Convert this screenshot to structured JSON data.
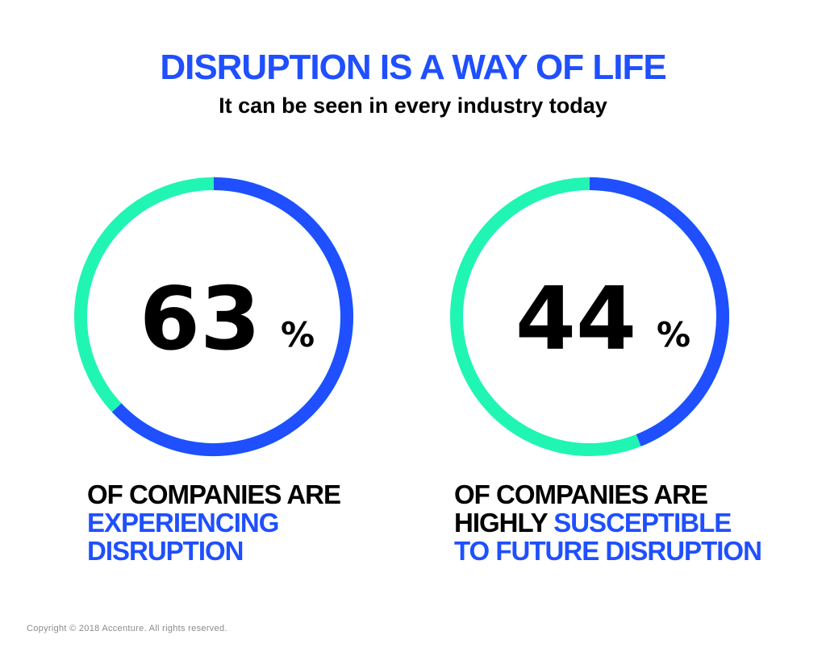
{
  "header": {
    "title": "DISRUPTION IS A WAY OF LIFE",
    "subtitle": "It can be seen in every industry today"
  },
  "colors": {
    "primary_blue": "#1f4fff",
    "accent_green": "#21f5b4",
    "text_black": "#000000"
  },
  "chart_data": [
    {
      "type": "pie",
      "value": 63,
      "value_label": "63",
      "unit": "%",
      "caption_lines": [
        [
          {
            "text": "OF COMPANIES ARE",
            "color": "black"
          }
        ],
        [
          {
            "text": "EXPERIENCING",
            "color": "blue"
          }
        ],
        [
          {
            "text": "DISRUPTION",
            "color": "blue"
          }
        ]
      ]
    },
    {
      "type": "pie",
      "value": 44,
      "value_label": "44",
      "unit": "%",
      "caption_lines": [
        [
          {
            "text": "OF COMPANIES ARE",
            "color": "black"
          }
        ],
        [
          {
            "text": "HIGHLY ",
            "color": "black"
          },
          {
            "text": "SUSCEPTIBLE",
            "color": "blue"
          }
        ],
        [
          {
            "text": "TO FUTURE DISRUPTION",
            "color": "blue"
          }
        ]
      ]
    }
  ],
  "footer": {
    "copyright": "Copyright © 2018 Accenture. All rights reserved."
  }
}
